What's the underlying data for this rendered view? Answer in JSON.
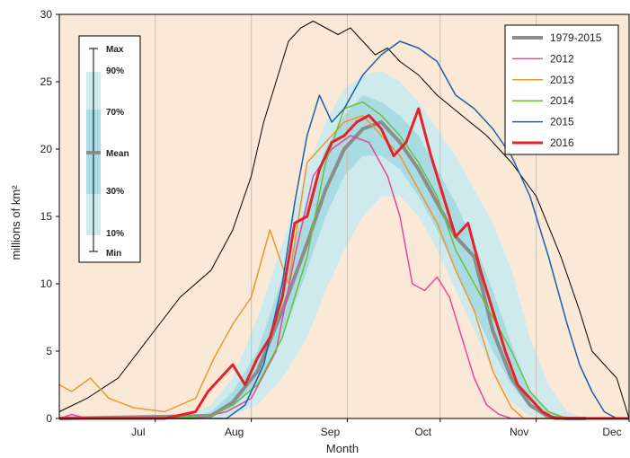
{
  "chart_data": {
    "type": "line",
    "title": "",
    "xlabel": "Month",
    "ylabel": "millions of km²",
    "ylim": [
      0,
      30
    ],
    "yticks": [
      0,
      5,
      10,
      15,
      20,
      25,
      30
    ],
    "xlim": [
      166,
      350
    ],
    "month_ticks": [
      {
        "label": "Jul",
        "day": 197
      },
      {
        "label": "Aug",
        "day": 228
      },
      {
        "label": "Sep",
        "day": 259
      },
      {
        "label": "Oct",
        "day": 289
      },
      {
        "label": "Nov",
        "day": 320
      },
      {
        "label": "Dec",
        "day": 350
      }
    ],
    "colors": {
      "background": "#fbe9d8",
      "band_outer": "#cfeaed",
      "band_mid": "#a9dce2",
      "band_inner": "#7fc8d0",
      "mean": "#8c8c8c",
      "max_min": "#000000"
    },
    "climatology": {
      "x": [
        166,
        190,
        205,
        215,
        222,
        230,
        238,
        246,
        252,
        258,
        264,
        270,
        276,
        282,
        288,
        294,
        300,
        306,
        312,
        318,
        324,
        330,
        336,
        342,
        348,
        350
      ],
      "p10": [
        0,
        0,
        0,
        0,
        0.2,
        1.0,
        3.0,
        6.0,
        9.5,
        12.5,
        15.0,
        16.5,
        16.5,
        15.0,
        12.5,
        9.5,
        6.5,
        3.5,
        1.2,
        0.2,
        0,
        0,
        0,
        0,
        0,
        0
      ],
      "p30": [
        0,
        0,
        0,
        0.1,
        0.8,
        2.5,
        6.0,
        11.0,
        15.0,
        18.0,
        19.5,
        19.5,
        18.5,
        16.5,
        14.0,
        11.0,
        8.0,
        5.0,
        2.5,
        0.8,
        0,
        0,
        0,
        0,
        0,
        0
      ],
      "mean": [
        0,
        0,
        0,
        0.2,
        1.2,
        3.5,
        8.0,
        13.0,
        17.0,
        20.0,
        21.5,
        21.5,
        20.5,
        18.5,
        16.0,
        13.0,
        10.0,
        6.5,
        3.0,
        1.0,
        0.1,
        0,
        0,
        0,
        0,
        0
      ],
      "p70": [
        0,
        0,
        0,
        0.5,
        2.0,
        5.0,
        10.5,
        16.0,
        20.0,
        22.5,
        24.0,
        23.5,
        22.5,
        21.0,
        18.5,
        16.0,
        13.0,
        9.5,
        5.5,
        2.0,
        0.5,
        0,
        0,
        0,
        0,
        0
      ],
      "p90": [
        0,
        0,
        0,
        1.0,
        3.0,
        7.5,
        13.0,
        18.5,
        22.0,
        24.5,
        25.5,
        25.8,
        25.0,
        23.5,
        21.5,
        19.5,
        17.0,
        14.5,
        11.0,
        6.0,
        2.5,
        0.5,
        0,
        0,
        0,
        0
      ]
    },
    "series": [
      {
        "name": "1979-2015",
        "color": "#8c8c8c",
        "width": 4,
        "x": [
          166,
          215,
          222,
          230,
          238,
          246,
          252,
          258,
          264,
          270,
          276,
          282,
          288,
          294,
          300,
          306,
          312,
          318,
          324,
          330,
          336
        ],
        "y": [
          0,
          0.2,
          1.2,
          3.5,
          8.0,
          13.0,
          17.0,
          20.0,
          21.5,
          22.0,
          20.5,
          18.5,
          16.0,
          13.5,
          12.0,
          6.5,
          3.0,
          1.0,
          0.1,
          0,
          0
        ]
      },
      {
        "name": "2012",
        "color": "#e8479a",
        "width": 1.5,
        "x": [
          166,
          170,
          175,
          190,
          210,
          220,
          228,
          236,
          242,
          248,
          254,
          260,
          266,
          272,
          276,
          280,
          284,
          288,
          292,
          296,
          300,
          304,
          308,
          312,
          350
        ],
        "y": [
          0,
          0.3,
          0,
          0,
          0,
          0.5,
          1.5,
          5.0,
          12.0,
          18.0,
          20.0,
          21.0,
          20.5,
          18.0,
          15.0,
          10.0,
          9.5,
          10.5,
          9.0,
          6.0,
          3.0,
          1.0,
          0.3,
          0,
          0
        ]
      },
      {
        "name": "2013",
        "color": "#f0962a",
        "width": 1.5,
        "x": [
          166,
          170,
          176,
          182,
          190,
          200,
          210,
          216,
          222,
          228,
          234,
          240,
          246,
          252,
          258,
          264,
          270,
          276,
          282,
          288,
          294,
          300,
          306,
          312,
          316,
          350
        ],
        "y": [
          2.5,
          2.0,
          3.0,
          1.5,
          0.8,
          0.5,
          1.5,
          4.5,
          7.0,
          9.0,
          14.0,
          10.0,
          19.0,
          20.5,
          22.0,
          22.5,
          21.0,
          19.5,
          17.0,
          14.5,
          11.0,
          8.0,
          3.5,
          0.8,
          0,
          0
        ]
      },
      {
        "name": "2014",
        "color": "#6abf3c",
        "width": 1.5,
        "x": [
          166,
          200,
          215,
          222,
          230,
          238,
          246,
          252,
          258,
          264,
          270,
          276,
          282,
          288,
          294,
          300,
          306,
          312,
          318,
          324,
          330,
          350
        ],
        "y": [
          0,
          0,
          0.2,
          1.0,
          2.5,
          6.0,
          12.0,
          19.0,
          23.0,
          23.5,
          22.5,
          21.0,
          19.0,
          16.5,
          12.5,
          10.0,
          7.5,
          5.0,
          2.0,
          0.5,
          0,
          0
        ]
      },
      {
        "name": "2015",
        "color": "#1d5fa8",
        "width": 1.5,
        "x": [
          166,
          220,
          226,
          232,
          238,
          242,
          246,
          250,
          254,
          258,
          264,
          270,
          276,
          282,
          288,
          294,
          300,
          306,
          312,
          318,
          324,
          330,
          334,
          338,
          342,
          346
        ],
        "y": [
          0,
          0,
          1.0,
          4.0,
          10.0,
          16.0,
          21.0,
          24.0,
          22.0,
          23.0,
          25.5,
          27.0,
          28.0,
          27.5,
          26.5,
          24.0,
          23.0,
          21.5,
          19.5,
          16.5,
          12.0,
          7.0,
          4.0,
          2.0,
          0.5,
          0
        ]
      },
      {
        "name": "2016",
        "color": "#e3232a",
        "width": 3,
        "x": [
          166,
          200,
          210,
          214,
          218,
          222,
          226,
          230,
          234,
          238,
          242,
          246,
          250,
          254,
          258,
          262,
          266,
          270,
          274,
          278,
          282,
          286,
          290,
          294,
          298,
          302,
          306,
          310,
          314,
          318,
          322,
          326,
          350
        ],
        "y": [
          0,
          0,
          0.5,
          2.0,
          3.0,
          4.0,
          2.5,
          4.5,
          6.0,
          9.0,
          14.5,
          15.0,
          18.5,
          20.5,
          21.0,
          22.0,
          22.5,
          21.5,
          19.5,
          20.5,
          23.0,
          19.5,
          16.5,
          13.5,
          14.5,
          11.0,
          8.0,
          5.0,
          2.5,
          1.5,
          0.5,
          0,
          0
        ]
      }
    ],
    "max_line": {
      "x": [
        166,
        175,
        185,
        195,
        205,
        215,
        222,
        228,
        232,
        236,
        240,
        244,
        248,
        252,
        256,
        260,
        264,
        268,
        272,
        276,
        282,
        288,
        296,
        304,
        312,
        320,
        328,
        334,
        338,
        342,
        346,
        350
      ],
      "y": [
        0.5,
        1.5,
        3.0,
        6.0,
        9.0,
        11.0,
        14.0,
        18.0,
        22.0,
        25.0,
        28.0,
        29.0,
        29.5,
        29.0,
        28.5,
        29.0,
        28.0,
        27.0,
        27.5,
        26.5,
        25.5,
        24.0,
        22.5,
        21.0,
        19.0,
        16.5,
        12.0,
        8.0,
        5.0,
        4.0,
        3.0,
        0
      ]
    },
    "legend": {
      "placement": "top-right",
      "entries": [
        "1979-2015",
        "2012",
        "2013",
        "2014",
        "2015",
        "2016"
      ]
    },
    "band_legend": {
      "placement": "top-left",
      "labels": {
        "max": "Max",
        "p90": "90%",
        "p70": "70%",
        "mean": "Mean",
        "p30": "30%",
        "p10": "10%",
        "min": "Min"
      }
    }
  }
}
